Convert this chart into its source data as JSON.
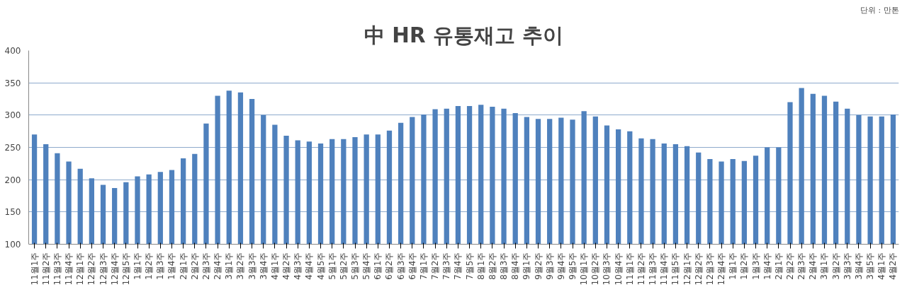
{
  "chart_data": {
    "type": "bar",
    "title": "中 HR 유통재고 추이",
    "annotations": [
      "단위 : 만톤"
    ],
    "categories": [
      "11월1주",
      "11월2주",
      "11월3주",
      "11월4주",
      "12월1주",
      "12월2주",
      "12월3주",
      "12월4주",
      "12월5주",
      "1월1주",
      "1월2주",
      "1월3주",
      "1월4주",
      "2월1주",
      "2월2주",
      "2월3주",
      "2월4주",
      "3월1주",
      "3월2주",
      "3월3주",
      "3월4주",
      "4월1주",
      "4월2주",
      "4월3주",
      "4월4주",
      "4월5주",
      "5월1주",
      "5월2주",
      "5월3주",
      "5월4주",
      "6월1주",
      "6월2주",
      "6월3주",
      "6월4주",
      "7월1주",
      "7월2주",
      "7월3주",
      "7월4주",
      "7월5주",
      "8월1주",
      "8월2주",
      "8월3주",
      "8월4주",
      "9월1주",
      "9월2주",
      "9월3주",
      "9월4주",
      "9월5주",
      "10월1주",
      "10월2주",
      "10월3주",
      "10월4주",
      "11월1주",
      "11월2주",
      "11월3주",
      "11월4주",
      "11월5주",
      "12월1주",
      "12월2주",
      "12월3주",
      "12월4주",
      "1월1주",
      "1월2주",
      "1월3주",
      "1월4주",
      "2월1주",
      "2월2주",
      "2월3주",
      "2월4주",
      "3월1주",
      "3월2주",
      "3월3주",
      "3월4주",
      "3월5주",
      "4월1주",
      "4월2주"
    ],
    "series": [
      {
        "color": "#4f81bd",
        "values": [
          270,
          255,
          241,
          228,
          217,
          202,
          192,
          187,
          196,
          205,
          208,
          212,
          215,
          233,
          240,
          287,
          330,
          338,
          335,
          325,
          300,
          285,
          268,
          261,
          259,
          256,
          263,
          263,
          266,
          270,
          270,
          276,
          288,
          297,
          301,
          309,
          310,
          314,
          314,
          316,
          313,
          310,
          303,
          297,
          294,
          294,
          296,
          293,
          306,
          298,
          284,
          278,
          275,
          264,
          263,
          256,
          255,
          252,
          242,
          232,
          228,
          232,
          229,
          237,
          250,
          250,
          320,
          342,
          333,
          330,
          321,
          310,
          300,
          298,
          298,
          301
        ]
      }
    ],
    "ylim": [
      100,
      400
    ],
    "yticks": [
      100,
      150,
      200,
      250,
      300,
      350,
      400
    ],
    "grid": "y"
  }
}
